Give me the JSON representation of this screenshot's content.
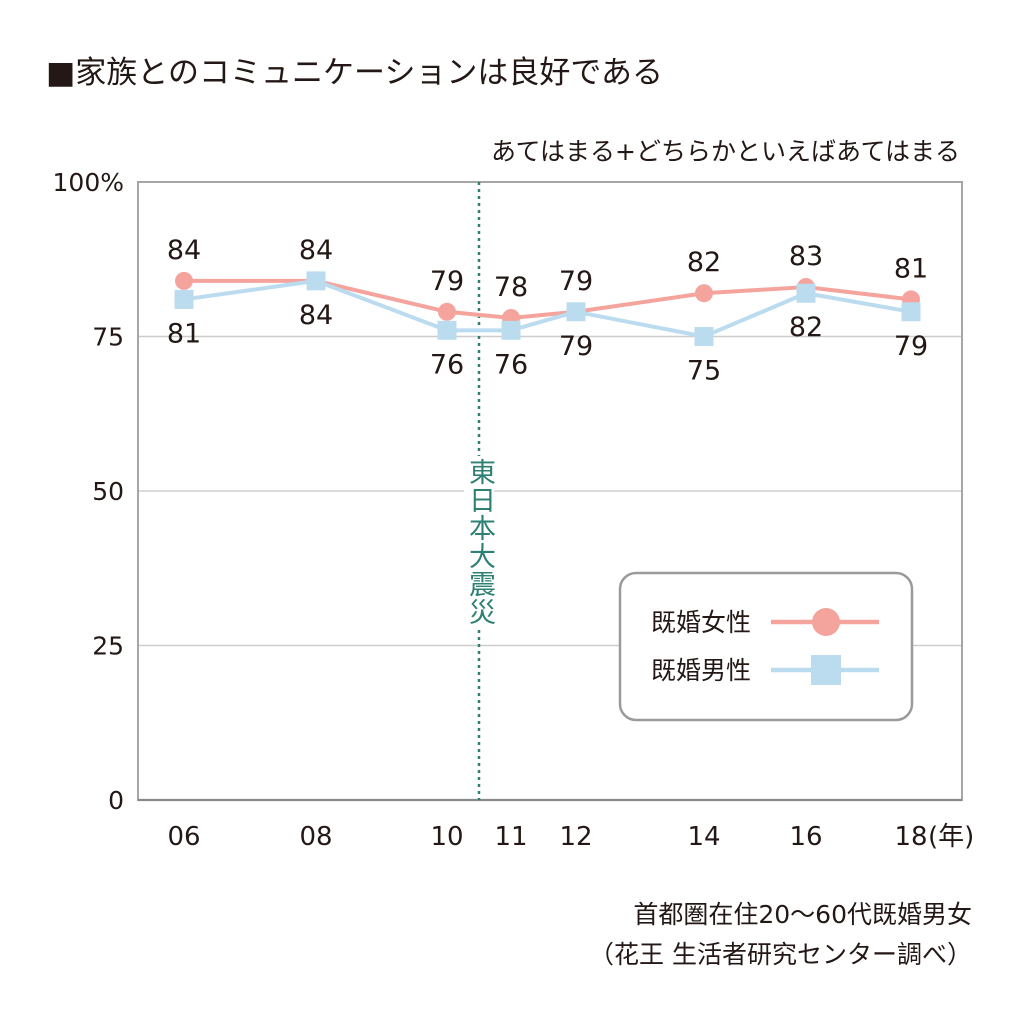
{
  "chart_data": {
    "type": "line",
    "title": "■家族とのコミュニケーションは良好である",
    "subtitle": "あてはまる+どちらかといえばあてはまる",
    "categories": [
      "06",
      "08",
      "10",
      "11",
      "12",
      "14",
      "16",
      "18"
    ],
    "x_unit": "(年)",
    "ylim": [
      0,
      100
    ],
    "yticks": [
      0,
      25,
      50,
      75,
      100
    ],
    "ytick_labels": [
      "0",
      "25",
      "50",
      "75",
      "100%"
    ],
    "grid": true,
    "legend": "bottom-right",
    "series": [
      {
        "name": "既婚女性",
        "color": "#f4a49c",
        "marker": "circle",
        "values": [
          84,
          84,
          79,
          78,
          79,
          82,
          83,
          81
        ]
      },
      {
        "name": "既婚男性",
        "color": "#bbdcef",
        "marker": "square",
        "values": [
          81,
          84,
          76,
          76,
          79,
          75,
          82,
          79
        ]
      }
    ],
    "annotations": [
      {
        "text": "東日本大震災",
        "x": 10.5,
        "color": "#2e8074"
      }
    ],
    "notes": [
      "首都圏在住20〜60代既婚男女",
      "（花王 生活者研究センター調べ）"
    ]
  }
}
